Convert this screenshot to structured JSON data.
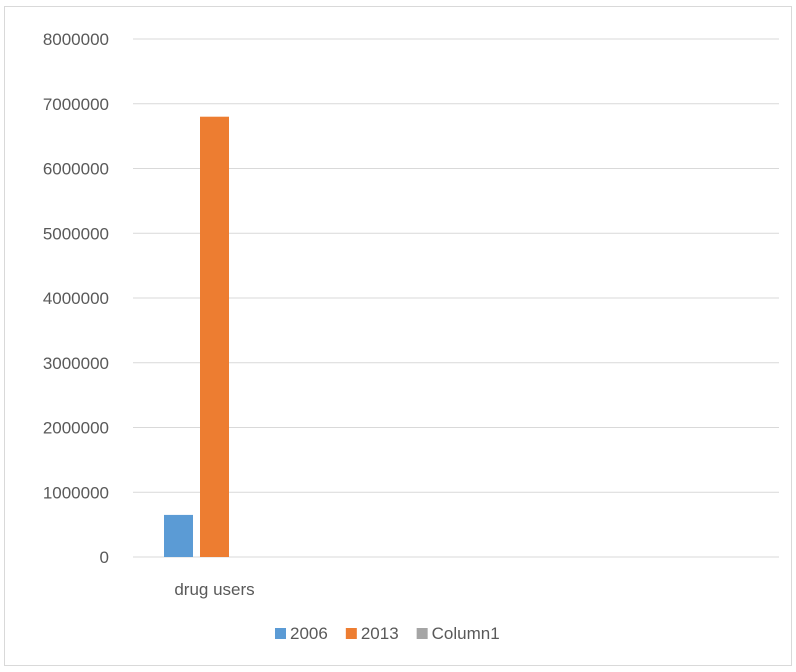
{
  "chart_data": {
    "type": "bar",
    "title": "",
    "xlabel": "",
    "ylabel": "",
    "categories": [
      "drug users"
    ],
    "series": [
      {
        "name": "2006",
        "color": "#5b9bd5",
        "values": [
          650000
        ]
      },
      {
        "name": "2013",
        "color": "#ed7d31",
        "values": [
          6800000
        ]
      },
      {
        "name": "Column1",
        "color": "#a5a5a5",
        "values": [
          0
        ]
      }
    ],
    "ylim": [
      0,
      8000000
    ],
    "y_ticks": [
      "0",
      "1000000",
      "2000000",
      "3000000",
      "4000000",
      "5000000",
      "6000000",
      "7000000",
      "8000000"
    ],
    "grid": true,
    "legend_position": "bottom"
  }
}
